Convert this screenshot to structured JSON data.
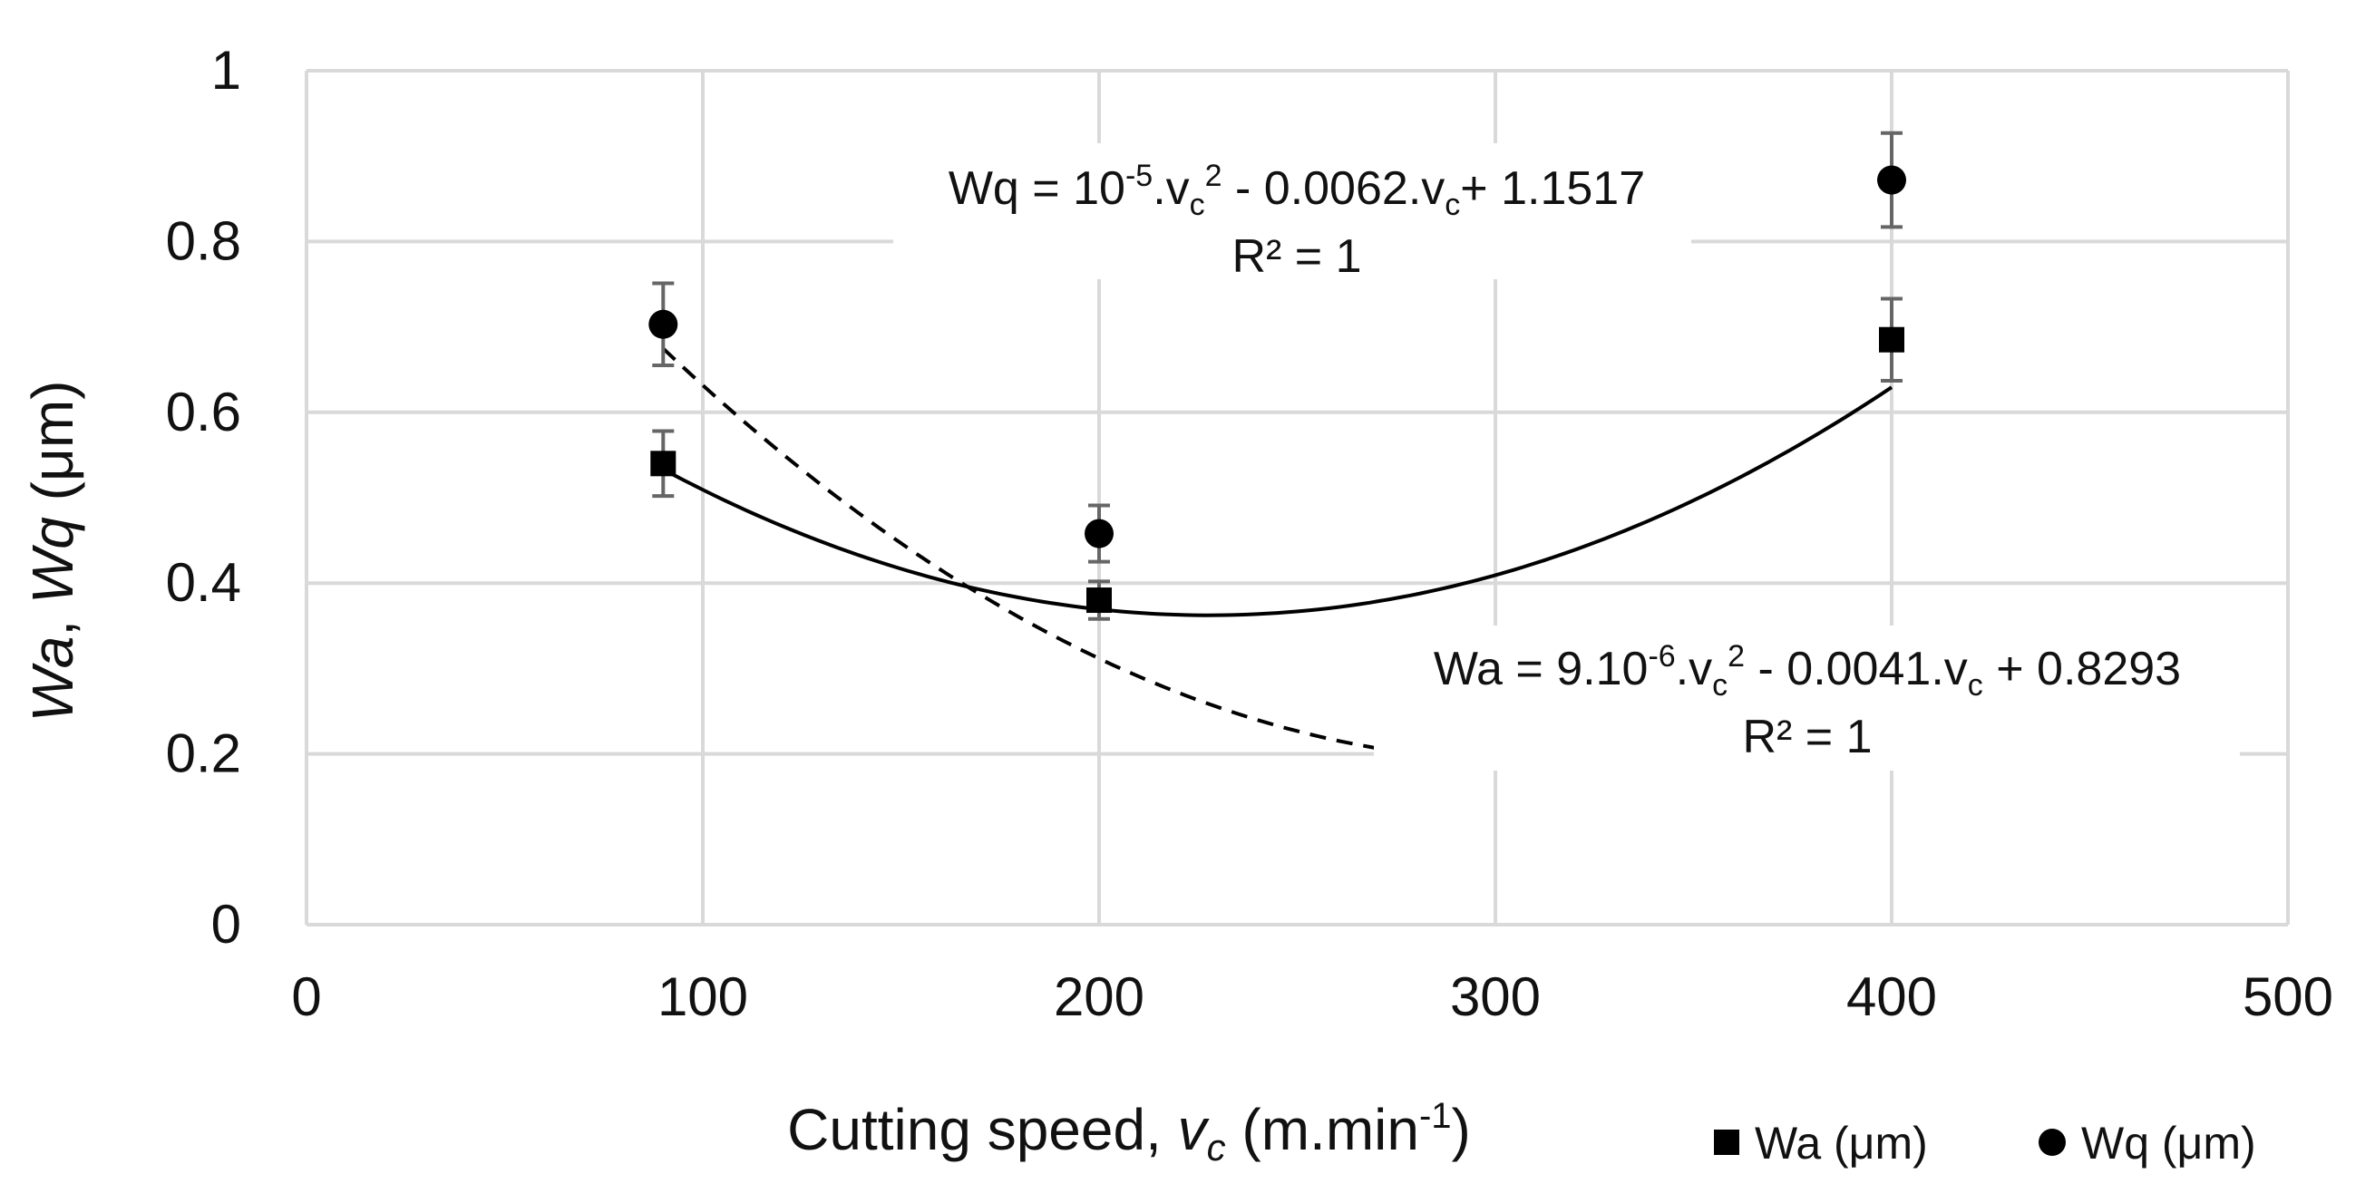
{
  "chart_data": {
    "type": "scatter",
    "xlabel_prefix": "Cutting speed, ",
    "xlabel_var": "v",
    "xlabel_var_sub": "c",
    "xlabel_unit_pre": " (m.min",
    "xlabel_unit_sup": "-1",
    "xlabel_unit_post": ")",
    "ylabel_a": "Wa",
    "ylabel_sep": ", ",
    "ylabel_b": "Wq",
    "ylabel_unit": " (μm)",
    "xlim": [
      0,
      500
    ],
    "ylim": [
      0,
      1
    ],
    "x_ticks": [
      0,
      100,
      200,
      300,
      400,
      500
    ],
    "x_tick_labels": [
      "0",
      "100",
      "200",
      "300",
      "400",
      "500"
    ],
    "y_ticks": [
      0,
      0.2,
      0.4,
      0.6,
      0.8,
      1
    ],
    "y_tick_labels": [
      "0",
      "0.2",
      "0.4",
      "0.6",
      "0.8",
      "1"
    ],
    "grid": true,
    "legend_position": "bottom-right",
    "series": [
      {
        "name": "Wa (μm)",
        "marker": "square",
        "x": [
          90,
          200,
          400
        ],
        "y": [
          0.54,
          0.38,
          0.685
        ],
        "error": [
          0.038,
          0.022,
          0.048
        ],
        "trendline": {
          "type": "poly2",
          "a": 9e-06,
          "b": -0.0041,
          "c": 0.8293,
          "style": "solid"
        },
        "equation": {
          "t1": "Wa = 9.10",
          "s1": "-6",
          "t2": ".v",
          "b1": "c",
          "s2": "2",
          "t3": " - 0.0041.v",
          "b2": "c",
          "t4": " + 0.8293",
          "r2": "R² = 1"
        }
      },
      {
        "name": "Wq (μm)",
        "marker": "circle",
        "x": [
          90,
          200,
          400
        ],
        "y": [
          0.703,
          0.458,
          0.872
        ],
        "error": [
          0.048,
          0.033,
          0.055
        ],
        "trendline": {
          "type": "poly2",
          "a": 1e-05,
          "b": -0.0062,
          "c": 1.1517,
          "style": "dashed"
        },
        "equation": {
          "t1": "Wq = 10",
          "s1": "-5",
          "t2": ".v",
          "b1": "c",
          "s2": "2",
          "t3": " - 0.0062.v",
          "b2": "c",
          "t4": "+ 1.1517",
          "r2": "R² = 1"
        }
      }
    ]
  }
}
